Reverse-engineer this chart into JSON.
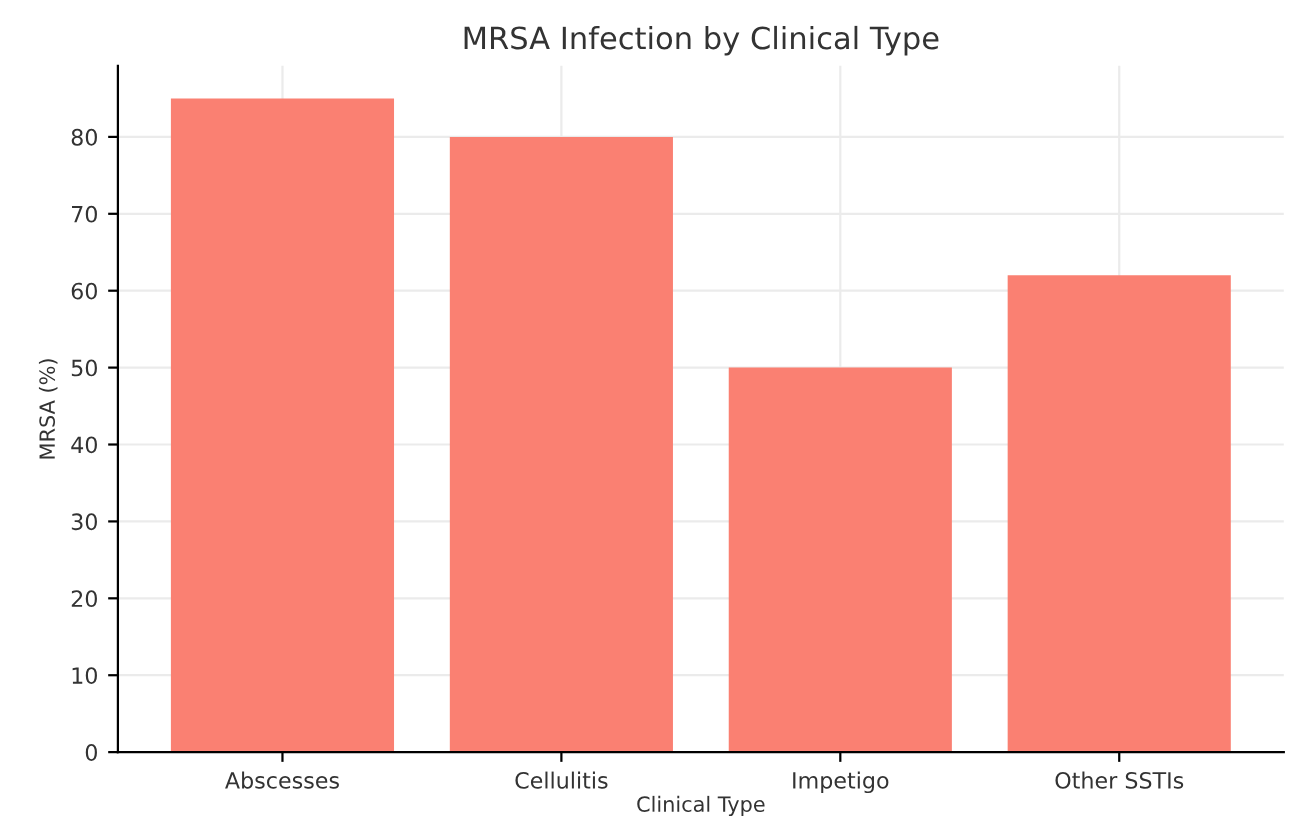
{
  "chart_data": {
    "type": "bar",
    "title": "MRSA Infection by Clinical Type",
    "xlabel": "Clinical Type",
    "ylabel": "MRSA (%)",
    "categories": [
      "Abscesses",
      "Cellulitis",
      "Impetigo",
      "Other SSTIs"
    ],
    "values": [
      85,
      80,
      50,
      62
    ],
    "color": "#fa8072",
    "ylim": [
      0,
      89.25
    ],
    "yticks": [
      0,
      10,
      20,
      30,
      40,
      50,
      60,
      70,
      80
    ],
    "grid": true
  }
}
